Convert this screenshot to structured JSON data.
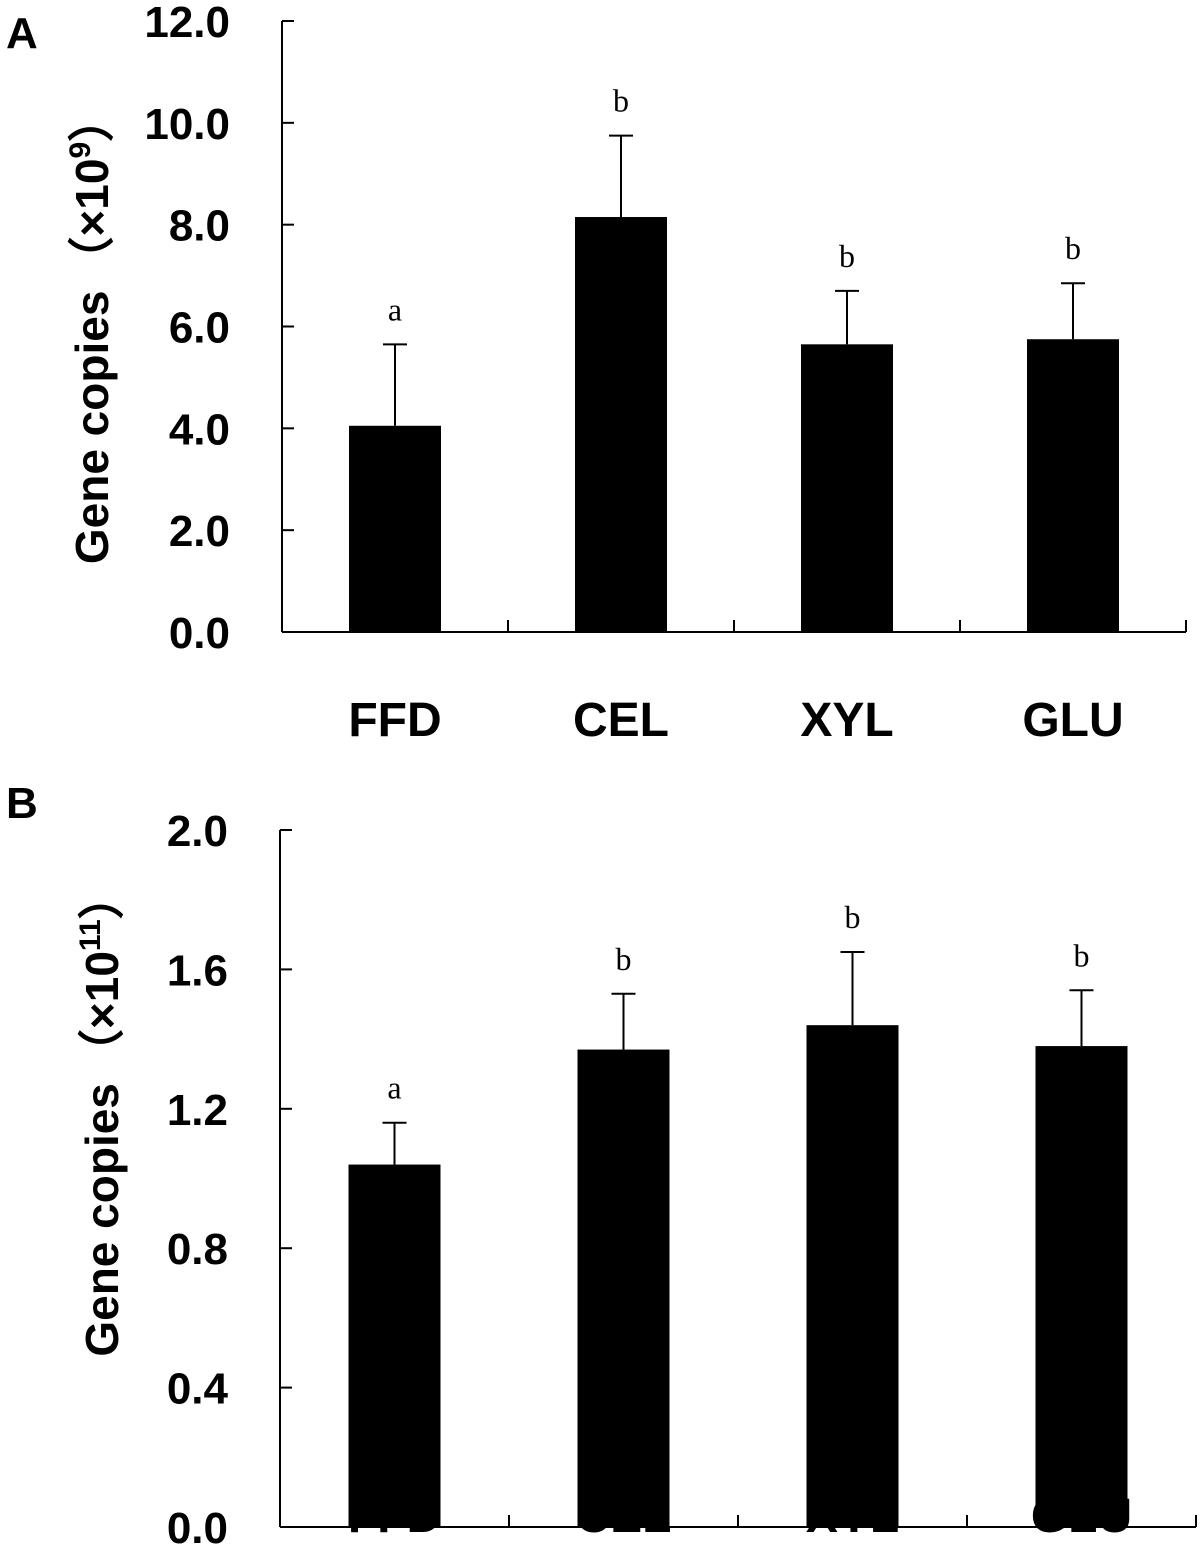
{
  "chart_data": [
    {
      "type": "bar",
      "panel_label": "A",
      "categories": [
        "FFD",
        "CEL",
        "XYL",
        "GLU"
      ],
      "values": [
        4.05,
        8.15,
        5.65,
        5.75
      ],
      "errors": [
        1.6,
        1.6,
        1.05,
        1.1
      ],
      "significance": [
        "a",
        "b",
        "b",
        "b"
      ],
      "ylabel": "Gene copies",
      "ylabel_unit_open": "（×10",
      "ylabel_unit_exp": "9",
      "ylabel_unit_close": "）",
      "ylim": [
        0,
        12
      ],
      "yticks": [
        0,
        2,
        4,
        6,
        8,
        10,
        12
      ],
      "ytick_labels": [
        "0.0",
        "2.0",
        "4.0",
        "6.0",
        "8.0",
        "10.0",
        "12.0"
      ],
      "bar_color": "#000000",
      "grid": false
    },
    {
      "type": "bar",
      "panel_label": "B",
      "categories": [
        "FFD",
        "CEL",
        "XYL",
        "GLU"
      ],
      "values": [
        1.04,
        1.37,
        1.44,
        1.38
      ],
      "errors": [
        0.12,
        0.16,
        0.21,
        0.16
      ],
      "significance": [
        "a",
        "b",
        "b",
        "b"
      ],
      "ylabel": "Gene copies",
      "ylabel_unit_open": "（×10",
      "ylabel_unit_exp": "11",
      "ylabel_unit_close": "）",
      "ylim": [
        0,
        2
      ],
      "yticks": [
        0,
        0.4,
        0.8,
        1.2,
        1.6,
        2.0
      ],
      "ytick_labels": [
        "0.0",
        "0.4",
        "0.8",
        "1.2",
        "1.6",
        "2.0"
      ],
      "bar_color": "#000000",
      "grid": false
    }
  ]
}
